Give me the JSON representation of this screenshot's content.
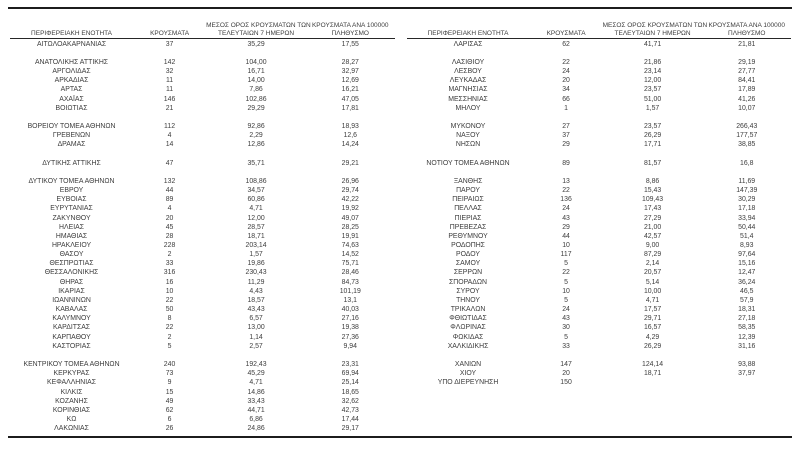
{
  "page": {
    "background_color": "#ffffff",
    "text_color": "#3d3d3d",
    "rule_color": "#1c1c1c"
  },
  "headers": {
    "region": "ΠΕΡΙΦΕΡΕΙΑΚΗ ΕΝΟΤΗΤΑ",
    "cases": "ΚΡΟΥΣΜΑΤΑ",
    "avg7_line1": "ΜΕΣΟΣ ΟΡΟΣ ΚΡΟΥΣΜΑΤΩΝ ΤΩΝ",
    "avg7_line2": "ΤΕΛΕΥΤΑΙΩΝ 7 ΗΜΕΡΩΝ",
    "per100k_line1": "ΚΡΟΥΣΜΑΤΑ ΑΝΑ 100000",
    "per100k_line2": "ΠΛΗΘΥΣΜΟ"
  },
  "left_table": {
    "rows": [
      [
        "ΑΙΤΩΛΟΑΚΑΡΝΑΝΙΑΣ",
        "37",
        "35,29",
        "17,55"
      ],
      [
        "",
        "",
        "",
        ""
      ],
      [
        "ΑΝΑΤΟΛΙΚΗΣ ΑΤΤΙΚΗΣ",
        "142",
        "104,00",
        "28,27"
      ],
      [
        "ΑΡΓΟΛΙΔΑΣ",
        "32",
        "16,71",
        "32,97"
      ],
      [
        "ΑΡΚΑΔΙΑΣ",
        "11",
        "14,00",
        "12,69"
      ],
      [
        "ΑΡΤΑΣ",
        "11",
        "7,86",
        "16,21"
      ],
      [
        "ΑΧΑΪΑΣ",
        "146",
        "102,86",
        "47,05"
      ],
      [
        "ΒΟΙΩΤΙΑΣ",
        "21",
        "29,29",
        "17,81"
      ],
      [
        "",
        "",
        "",
        ""
      ],
      [
        "ΒΟΡΕΙΟΥ ΤΟΜΕΑ ΑΘΗΝΩΝ",
        "112",
        "92,86",
        "18,93"
      ],
      [
        "ΓΡΕΒΕΝΩΝ",
        "4",
        "2,29",
        "12,6"
      ],
      [
        "ΔΡΑΜΑΣ",
        "14",
        "12,86",
        "14,24"
      ],
      [
        "",
        "",
        "",
        ""
      ],
      [
        "ΔΥΤΙΚΗΣ ΑΤΤΙΚΗΣ",
        "47",
        "35,71",
        "29,21"
      ],
      [
        "",
        "",
        "",
        ""
      ],
      [
        "ΔΥΤΙΚΟΥ ΤΟΜΕΑ ΑΘΗΝΩΝ",
        "132",
        "108,86",
        "26,96"
      ],
      [
        "ΕΒΡΟΥ",
        "44",
        "34,57",
        "29,74"
      ],
      [
        "ΕΥΒΟΙΑΣ",
        "89",
        "60,86",
        "42,22"
      ],
      [
        "ΕΥΡΥΤΑΝΙΑΣ",
        "4",
        "4,71",
        "19,92"
      ],
      [
        "ΖΑΚΥΝΘΟΥ",
        "20",
        "12,00",
        "49,07"
      ],
      [
        "ΗΛΕΙΑΣ",
        "45",
        "28,57",
        "28,25"
      ],
      [
        "ΗΜΑΘΙΑΣ",
        "28",
        "18,71",
        "19,91"
      ],
      [
        "ΗΡΑΚΛΕΙΟΥ",
        "228",
        "203,14",
        "74,63"
      ],
      [
        "ΘΑΣΟΥ",
        "2",
        "1,57",
        "14,52"
      ],
      [
        "ΘΕΣΠΡΩΤΙΑΣ",
        "33",
        "19,86",
        "75,71"
      ],
      [
        "ΘΕΣΣΑΛΟΝΙΚΗΣ",
        "316",
        "230,43",
        "28,46"
      ],
      [
        "ΘΗΡΑΣ",
        "16",
        "11,29",
        "84,73"
      ],
      [
        "ΙΚΑΡΙΑΣ",
        "10",
        "4,43",
        "101,19"
      ],
      [
        "ΙΩΑΝΝΙΝΩΝ",
        "22",
        "18,57",
        "13,1"
      ],
      [
        "ΚΑΒΑΛΑΣ",
        "50",
        "43,43",
        "40,03"
      ],
      [
        "ΚΑΛΥΜΝΟΥ",
        "8",
        "6,57",
        "27,16"
      ],
      [
        "ΚΑΡΔΙΤΣΑΣ",
        "22",
        "13,00",
        "19,38"
      ],
      [
        "ΚΑΡΠΑΘΟΥ",
        "2",
        "1,14",
        "27,36"
      ],
      [
        "ΚΑΣΤΟΡΙΑΣ",
        "5",
        "2,57",
        "9,94"
      ],
      [
        "",
        "",
        "",
        ""
      ],
      [
        "ΚΕΝΤΡΙΚΟΥ ΤΟΜΕΑ ΑΘΗΝΩΝ",
        "240",
        "192,43",
        "23,31"
      ],
      [
        "ΚΕΡΚΥΡΑΣ",
        "73",
        "45,29",
        "69,94"
      ],
      [
        "ΚΕΦΑΛΛΗΝΙΑΣ",
        "9",
        "4,71",
        "25,14"
      ],
      [
        "ΚΙΛΚΙΣ",
        "15",
        "14,86",
        "18,65"
      ],
      [
        "ΚΟΖΑΝΗΣ",
        "49",
        "33,43",
        "32,62"
      ],
      [
        "ΚΟΡΙΝΘΙΑΣ",
        "62",
        "44,71",
        "42,73"
      ],
      [
        "ΚΩ",
        "6",
        "6,86",
        "17,44"
      ],
      [
        "ΛΑΚΩΝΙΑΣ",
        "26",
        "24,86",
        "29,17"
      ]
    ]
  },
  "right_table": {
    "rows": [
      [
        "ΛΑΡΙΣΑΣ",
        "62",
        "41,71",
        "21,81"
      ],
      [
        "",
        "",
        "",
        ""
      ],
      [
        "ΛΑΣΙΘΙΟΥ",
        "22",
        "21,86",
        "29,19"
      ],
      [
        "ΛΕΣΒΟΥ",
        "24",
        "23,14",
        "27,77"
      ],
      [
        "ΛΕΥΚΑΔΑΣ",
        "20",
        "12,00",
        "84,41"
      ],
      [
        "ΜΑΓΝΗΣΙΑΣ",
        "34",
        "23,57",
        "17,89"
      ],
      [
        "ΜΕΣΣΗΝΙΑΣ",
        "66",
        "51,00",
        "41,26"
      ],
      [
        "ΜΗΛΟΥ",
        "1",
        "1,57",
        "10,07"
      ],
      [
        "",
        "",
        "",
        ""
      ],
      [
        "ΜΥΚΟΝΟΥ",
        "27",
        "23,57",
        "266,43"
      ],
      [
        "ΝΑΞΟΥ",
        "37",
        "26,29",
        "177,57"
      ],
      [
        "ΝΗΣΩΝ",
        "29",
        "17,71",
        "38,85"
      ],
      [
        "",
        "",
        "",
        ""
      ],
      [
        "ΝΟΤΙΟΥ ΤΟΜΕΑ ΑΘΗΝΩΝ",
        "89",
        "81,57",
        "16,8"
      ],
      [
        "",
        "",
        "",
        ""
      ],
      [
        "ΞΑΝΘΗΣ",
        "13",
        "8,86",
        "11,69"
      ],
      [
        "ΠΑΡΟΥ",
        "22",
        "15,43",
        "147,39"
      ],
      [
        "ΠΕΙΡΑΙΩΣ",
        "136",
        "109,43",
        "30,29"
      ],
      [
        "ΠΕΛΛΑΣ",
        "24",
        "17,43",
        "17,18"
      ],
      [
        "ΠΙΕΡΙΑΣ",
        "43",
        "27,29",
        "33,94"
      ],
      [
        "ΠΡΕΒΕΖΑΣ",
        "29",
        "21,00",
        "50,44"
      ],
      [
        "ΡΕΘΥΜΝΟΥ",
        "44",
        "42,57",
        "51,4"
      ],
      [
        "ΡΟΔΟΠΗΣ",
        "10",
        "9,00",
        "8,93"
      ],
      [
        "ΡΟΔΟΥ",
        "117",
        "87,29",
        "97,64"
      ],
      [
        "ΣΑΜΟΥ",
        "5",
        "2,14",
        "15,16"
      ],
      [
        "ΣΕΡΡΩΝ",
        "22",
        "20,57",
        "12,47"
      ],
      [
        "ΣΠΟΡΑΔΩΝ",
        "5",
        "5,14",
        "36,24"
      ],
      [
        "ΣΥΡΟΥ",
        "10",
        "10,00",
        "46,5"
      ],
      [
        "ΤΗΝΟΥ",
        "5",
        "4,71",
        "57,9"
      ],
      [
        "ΤΡΙΚΑΛΩΝ",
        "24",
        "17,57",
        "18,31"
      ],
      [
        "ΦΘΙΩΤΙΔΑΣ",
        "43",
        "29,71",
        "27,18"
      ],
      [
        "ΦΛΩΡΙΝΑΣ",
        "30",
        "16,57",
        "58,35"
      ],
      [
        "ΦΩΚΙΔΑΣ",
        "5",
        "4,29",
        "12,39"
      ],
      [
        "ΧΑΛΚΙΔΙΚΗΣ",
        "33",
        "26,29",
        "31,16"
      ],
      [
        "",
        "",
        "",
        ""
      ],
      [
        "ΧΑΝΙΩΝ",
        "147",
        "124,14",
        "93,88"
      ],
      [
        "ΧΙΟΥ",
        "20",
        "18,71",
        "37,97"
      ],
      [
        "ΥΠΟ ΔΙΕΡΕΥΝΗΣΗ",
        "150",
        "",
        ""
      ],
      [
        "",
        "",
        "",
        ""
      ],
      [
        "",
        "",
        "",
        ""
      ],
      [
        "",
        "",
        "",
        ""
      ],
      [
        "",
        "",
        "",
        ""
      ],
      [
        "",
        "",
        "",
        ""
      ]
    ]
  }
}
